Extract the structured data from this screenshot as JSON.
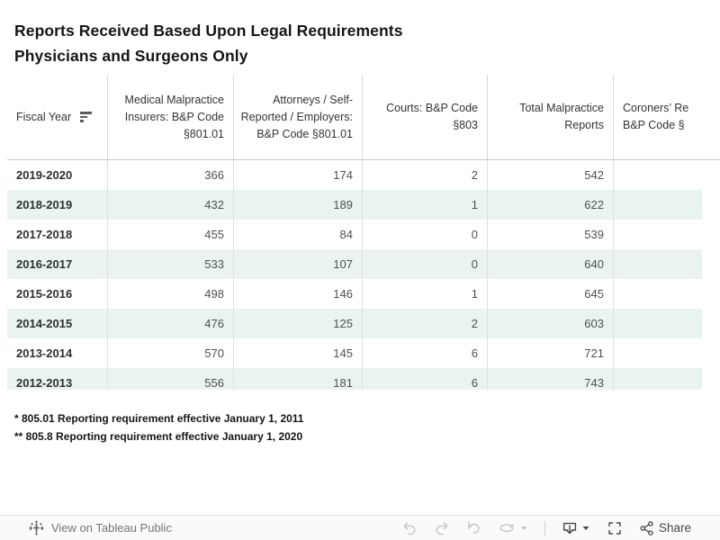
{
  "title": {
    "line1": "Reports Received Based Upon Legal Requirements",
    "line2": "Physicians and Surgeons Only"
  },
  "table": {
    "banded_row_color": "#e9f4f0",
    "columns": [
      {
        "id": "fiscal_year",
        "label": "Fiscal Year",
        "align": "left",
        "sortable": true
      },
      {
        "id": "insurers",
        "label": "Medical Malpractice Insurers: B&P Code §801.01",
        "align": "right"
      },
      {
        "id": "attorneys",
        "label": "Attorneys / Self-Reported / Employers: B&P Code §801.01",
        "align": "right"
      },
      {
        "id": "courts",
        "label": "Courts: B&P Code §803",
        "align": "right"
      },
      {
        "id": "total",
        "label": "Total Malpractice Reports",
        "align": "right"
      },
      {
        "id": "coroners",
        "label": "Coroners’ Re\nB&P Code §",
        "align": "left"
      }
    ],
    "rows": [
      {
        "fiscal_year": "2019-2020",
        "insurers": 366,
        "attorneys": 174,
        "courts": 2,
        "total": 542,
        "coroners": ""
      },
      {
        "fiscal_year": "2018-2019",
        "insurers": 432,
        "attorneys": 189,
        "courts": 1,
        "total": 622,
        "coroners": ""
      },
      {
        "fiscal_year": "2017-2018",
        "insurers": 455,
        "attorneys": 84,
        "courts": 0,
        "total": 539,
        "coroners": ""
      },
      {
        "fiscal_year": "2016-2017",
        "insurers": 533,
        "attorneys": 107,
        "courts": 0,
        "total": 640,
        "coroners": ""
      },
      {
        "fiscal_year": "2015-2016",
        "insurers": 498,
        "attorneys": 146,
        "courts": 1,
        "total": 645,
        "coroners": ""
      },
      {
        "fiscal_year": "2014-2015",
        "insurers": 476,
        "attorneys": 125,
        "courts": 2,
        "total": 603,
        "coroners": ""
      },
      {
        "fiscal_year": "2013-2014",
        "insurers": 570,
        "attorneys": 145,
        "courts": 6,
        "total": 721,
        "coroners": ""
      },
      {
        "fiscal_year": "2012-2013",
        "insurers": 556,
        "attorneys": 181,
        "courts": 6,
        "total": 743,
        "coroners": ""
      }
    ]
  },
  "footnotes": [
    "* 805.01 Reporting requirement effective January 1, 2011",
    "** 805.8 Reporting requirement effective January 1, 2020"
  ],
  "toolbar": {
    "view_on_label": "View on Tableau Public",
    "share_label": "Share",
    "icons": [
      "tableau-logo",
      "undo",
      "redo",
      "reset",
      "refresh",
      "caret-down",
      "download",
      "fullscreen",
      "share"
    ]
  }
}
